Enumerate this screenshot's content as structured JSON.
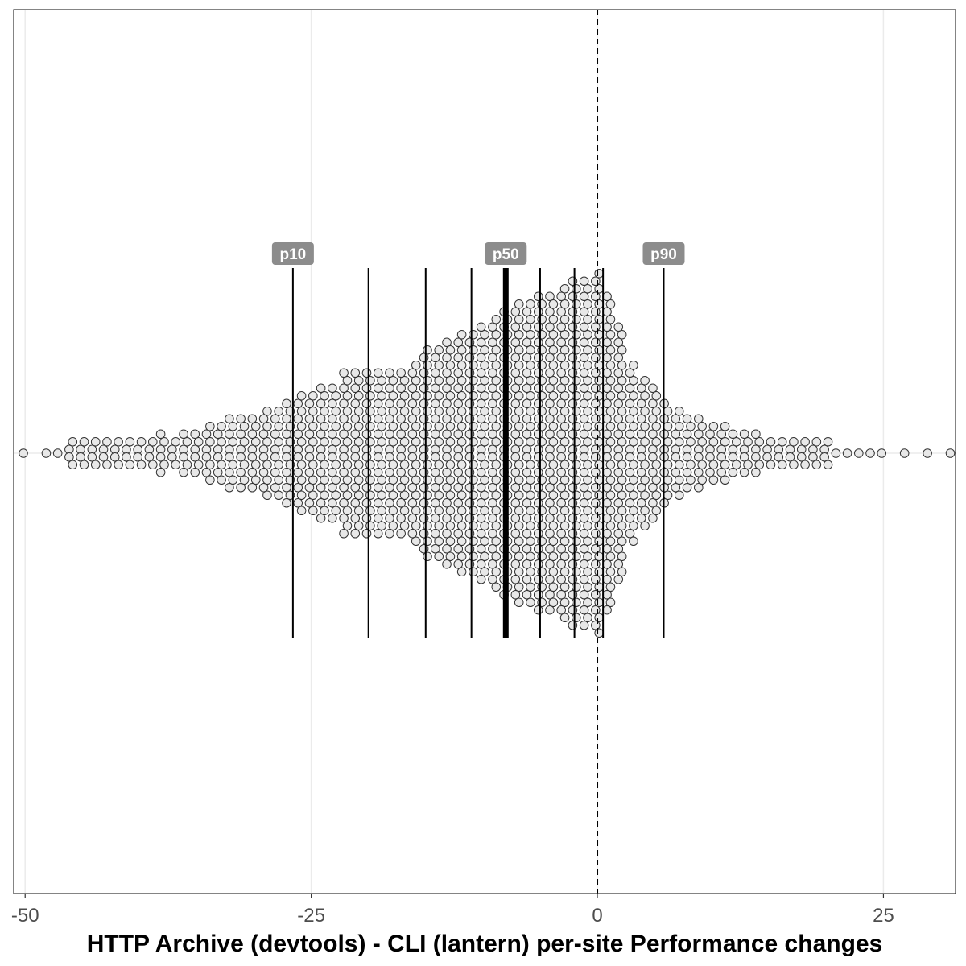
{
  "chart_data": {
    "type": "scatter",
    "variant": "beeswarm",
    "title": "",
    "xlabel": "HTTP Archive (devtools) - CLI (lantern) per-site Performance changes",
    "ylabel": "",
    "xlim": [
      -51,
      31.3
    ],
    "x_ticks": [
      -50,
      -25,
      0,
      25
    ],
    "x_tick_labels": [
      "-50",
      "-25",
      "0",
      "25"
    ],
    "grid": "major vertical lines only",
    "reference_line": {
      "x": 0,
      "style": "dashed"
    },
    "decile_lines": [
      {
        "x": -26.6,
        "label": "p10"
      },
      {
        "x": -20.0,
        "label": ""
      },
      {
        "x": -15.0,
        "label": ""
      },
      {
        "x": -11.0,
        "label": ""
      },
      {
        "x": -8.0,
        "label": "p50",
        "emphasis": true
      },
      {
        "x": -5.0,
        "label": ""
      },
      {
        "x": -2.0,
        "label": ""
      },
      {
        "x": 0.5,
        "label": ""
      },
      {
        "x": 5.8,
        "label": "p90"
      }
    ],
    "point_style": {
      "fill": "#e8e8e8",
      "stroke": "#333333"
    },
    "distribution_columns": [
      {
        "x": -50,
        "n": 1
      },
      {
        "x": -48,
        "n": 1
      },
      {
        "x": -47,
        "n": 1
      },
      {
        "x": -46,
        "n": 2
      },
      {
        "x": -45,
        "n": 2
      },
      {
        "x": -44,
        "n": 2
      },
      {
        "x": -43,
        "n": 2
      },
      {
        "x": -42,
        "n": 2
      },
      {
        "x": -41,
        "n": 2
      },
      {
        "x": -40,
        "n": 2
      },
      {
        "x": -39,
        "n": 2
      },
      {
        "x": -38,
        "n": 3
      },
      {
        "x": -37,
        "n": 2
      },
      {
        "x": -36,
        "n": 3
      },
      {
        "x": -35,
        "n": 3
      },
      {
        "x": -34,
        "n": 4
      },
      {
        "x": -33,
        "n": 4
      },
      {
        "x": -32,
        "n": 5
      },
      {
        "x": -31,
        "n": 5
      },
      {
        "x": -30,
        "n": 5
      },
      {
        "x": -29,
        "n": 6
      },
      {
        "x": -28,
        "n": 6
      },
      {
        "x": -27,
        "n": 7
      },
      {
        "x": -26,
        "n": 8
      },
      {
        "x": -25,
        "n": 8
      },
      {
        "x": -24,
        "n": 9
      },
      {
        "x": -23,
        "n": 9
      },
      {
        "x": -22,
        "n": 11
      },
      {
        "x": -21,
        "n": 11
      },
      {
        "x": -20,
        "n": 11
      },
      {
        "x": -19,
        "n": 11
      },
      {
        "x": -18,
        "n": 11
      },
      {
        "x": -17,
        "n": 11
      },
      {
        "x": -16,
        "n": 12
      },
      {
        "x": -15,
        "n": 14
      },
      {
        "x": -14,
        "n": 14
      },
      {
        "x": -13,
        "n": 15
      },
      {
        "x": -12,
        "n": 16
      },
      {
        "x": -11,
        "n": 16
      },
      {
        "x": -10,
        "n": 17
      },
      {
        "x": -9,
        "n": 18
      },
      {
        "x": -8,
        "n": 19
      },
      {
        "x": -7,
        "n": 20
      },
      {
        "x": -6,
        "n": 20
      },
      {
        "x": -5,
        "n": 21
      },
      {
        "x": -4,
        "n": 21
      },
      {
        "x": -3,
        "n": 22
      },
      {
        "x": -2,
        "n": 23
      },
      {
        "x": -1,
        "n": 23
      },
      {
        "x": 0,
        "n": 24
      },
      {
        "x": 1,
        "n": 21
      },
      {
        "x": 2,
        "n": 17
      },
      {
        "x": 3,
        "n": 12
      },
      {
        "x": 4,
        "n": 10
      },
      {
        "x": 5,
        "n": 9
      },
      {
        "x": 6,
        "n": 7
      },
      {
        "x": 7,
        "n": 6
      },
      {
        "x": 8,
        "n": 5
      },
      {
        "x": 9,
        "n": 5
      },
      {
        "x": 10,
        "n": 4
      },
      {
        "x": 11,
        "n": 4
      },
      {
        "x": 12,
        "n": 3
      },
      {
        "x": 13,
        "n": 3
      },
      {
        "x": 14,
        "n": 3
      },
      {
        "x": 15,
        "n": 2
      },
      {
        "x": 16,
        "n": 2
      },
      {
        "x": 17,
        "n": 2
      },
      {
        "x": 18,
        "n": 2
      },
      {
        "x": 19,
        "n": 2
      },
      {
        "x": 20,
        "n": 2
      },
      {
        "x": 21,
        "n": 1
      },
      {
        "x": 22,
        "n": 1
      },
      {
        "x": 23,
        "n": 1
      },
      {
        "x": 24,
        "n": 1
      },
      {
        "x": 25,
        "n": 1
      },
      {
        "x": 27,
        "n": 1
      },
      {
        "x": 29,
        "n": 1
      },
      {
        "x": 31,
        "n": 1
      }
    ]
  }
}
